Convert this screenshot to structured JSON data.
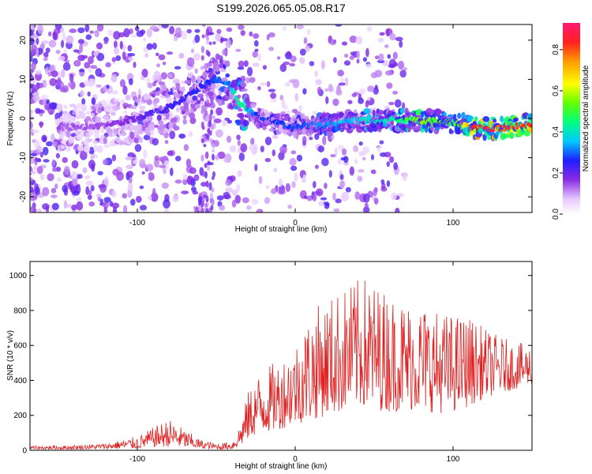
{
  "title": "S199.2026.065.05.08.R17",
  "colors": {
    "snr_line": "#e02020",
    "cbar_top": "#ff1a73"
  },
  "chart_data": [
    {
      "type": "heatmap",
      "name": "spectrogram",
      "xlabel": "Height of straight line (km)",
      "ylabel": "Frequency (Hz)",
      "xlim": [
        -168,
        150
      ],
      "ylim": [
        -24,
        24
      ],
      "xticks": [
        -100,
        0,
        100
      ],
      "xtick_labels": [
        "-100",
        "0",
        "100"
      ],
      "yticks": [
        -20,
        -10,
        0,
        10,
        20
      ],
      "ytick_labels": [
        "-20",
        "-10",
        "0",
        "10",
        "20"
      ],
      "ridge": {
        "x": [
          -145,
          -125,
          -100,
          -85,
          -70,
          -60,
          -50,
          -42,
          -35,
          -25,
          -15,
          0,
          20,
          40,
          60,
          80,
          100,
          115,
          130,
          148
        ],
        "y": [
          -2,
          -2,
          0,
          2,
          5,
          8,
          10,
          9,
          4,
          1,
          -1,
          -2,
          -1.5,
          -0.5,
          -0.5,
          -0.5,
          -1,
          -2.5,
          -2.5,
          -1.5
        ],
        "amplitude": [
          0.15,
          0.15,
          0.2,
          0.25,
          0.25,
          0.28,
          0.3,
          0.35,
          0.5,
          0.3,
          0.3,
          0.3,
          0.35,
          0.4,
          0.45,
          0.6,
          0.5,
          0.9,
          0.9,
          0.95
        ]
      },
      "colorbar": {
        "label": "Normalized spectral amplitude",
        "range": [
          0,
          0.93
        ],
        "ticks": [
          0.0,
          0.2,
          0.4,
          0.6,
          0.8
        ],
        "tick_labels": [
          "0.0",
          "0.2",
          "0.4",
          "0.6",
          "0.8"
        ]
      }
    },
    {
      "type": "line",
      "name": "snr",
      "xlabel": "Height of straight line (km)",
      "ylabel": "SNR (10 * v/v)",
      "xlim": [
        -168,
        150
      ],
      "ylim": [
        0,
        1080
      ],
      "xticks": [
        -100,
        0,
        100
      ],
      "xtick_labels": [
        "-100",
        "0",
        "100"
      ],
      "yticks": [
        0,
        200,
        400,
        600,
        800,
        1000
      ],
      "ytick_labels": [
        "0",
        "200",
        "400",
        "600",
        "800",
        "1000"
      ],
      "envelope": {
        "x": [
          -168,
          -140,
          -120,
          -100,
          -90,
          -80,
          -70,
          -60,
          -50,
          -40,
          -35,
          -30,
          -25,
          -20,
          -10,
          0,
          10,
          20,
          30,
          40,
          45,
          50,
          60,
          70,
          80,
          90,
          100,
          110,
          120,
          130,
          140,
          150
        ],
        "low": [
          5,
          5,
          8,
          10,
          20,
          20,
          15,
          10,
          5,
          5,
          20,
          60,
          90,
          100,
          120,
          150,
          170,
          200,
          220,
          250,
          240,
          230,
          220,
          230,
          230,
          210,
          220,
          250,
          300,
          330,
          350,
          380
        ],
        "high": [
          25,
          30,
          40,
          80,
          130,
          180,
          120,
          60,
          40,
          50,
          150,
          330,
          420,
          470,
          520,
          620,
          800,
          870,
          930,
          980,
          1000,
          960,
          900,
          860,
          850,
          800,
          780,
          770,
          700,
          650,
          620,
          600
        ]
      }
    }
  ]
}
